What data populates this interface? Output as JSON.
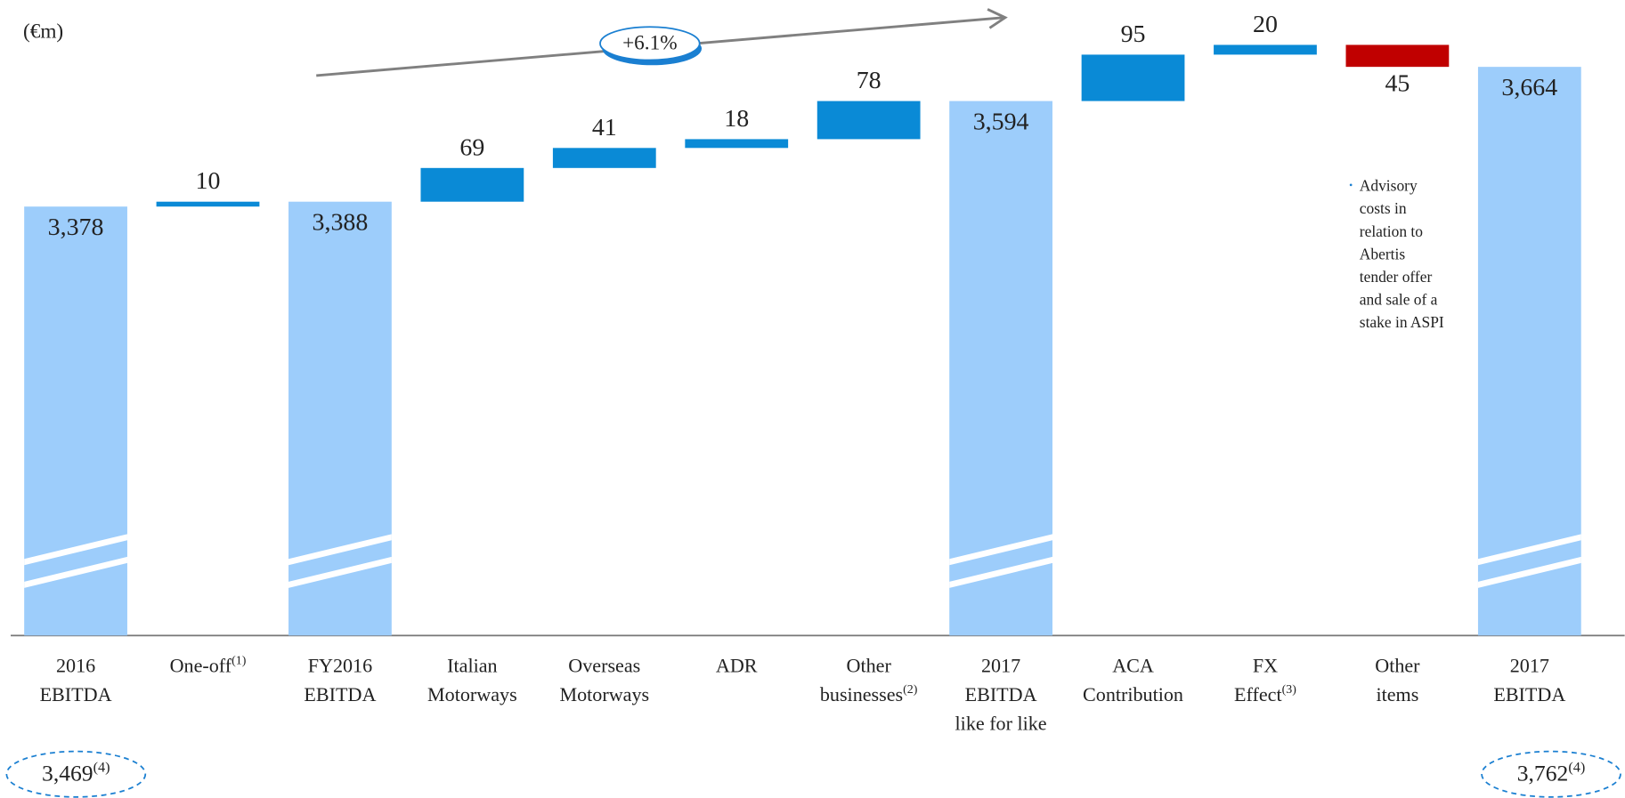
{
  "chart_data": {
    "type": "waterfall",
    "unit_label": "(€m)",
    "categories": [
      [
        "2016",
        "EBITDA"
      ],
      [
        "One-off"
      ],
      [
        "FY2016",
        "EBITDA"
      ],
      [
        "Italian",
        "Motorways"
      ],
      [
        "Overseas",
        "Motorways"
      ],
      [
        "ADR"
      ],
      [
        "Other",
        "businesses"
      ],
      [
        "2017",
        "EBITDA",
        "like for like"
      ],
      [
        "ACA",
        "Contribution"
      ],
      [
        "FX",
        "Effect"
      ],
      [
        "Other",
        "items"
      ],
      [
        "2017",
        "EBITDA"
      ]
    ],
    "category_notes": [
      null,
      "(1)",
      null,
      null,
      null,
      null,
      "(2)",
      null,
      null,
      "(3)",
      null,
      null
    ],
    "values": [
      3378,
      10,
      3388,
      69,
      41,
      18,
      78,
      3594,
      95,
      20,
      45,
      3664
    ],
    "value_labels": [
      "3,378",
      "10",
      "3,388",
      "69",
      "41",
      "18",
      "78",
      "3,594",
      "95",
      "20",
      "45",
      "3,664"
    ],
    "measures": [
      "total",
      "increase",
      "total",
      "increase",
      "increase",
      "increase",
      "increase",
      "total",
      "increase",
      "increase",
      "decrease",
      "total"
    ],
    "colors": {
      "total": "#9dcdfb",
      "increase": "#0a8ad6",
      "decrease": "#c00000"
    },
    "ylim": [
      2500,
      3750
    ],
    "growth_label": "+6.1%",
    "annotation": [
      "Advisory",
      "costs in",
      "relation to",
      "Abertis",
      "tender offer",
      "and  sale of a",
      "stake in ASPI"
    ],
    "footnotes": [
      {
        "value": "3,469",
        "note": "(4)"
      },
      {
        "value": "3,762",
        "note": "(4)"
      }
    ]
  }
}
